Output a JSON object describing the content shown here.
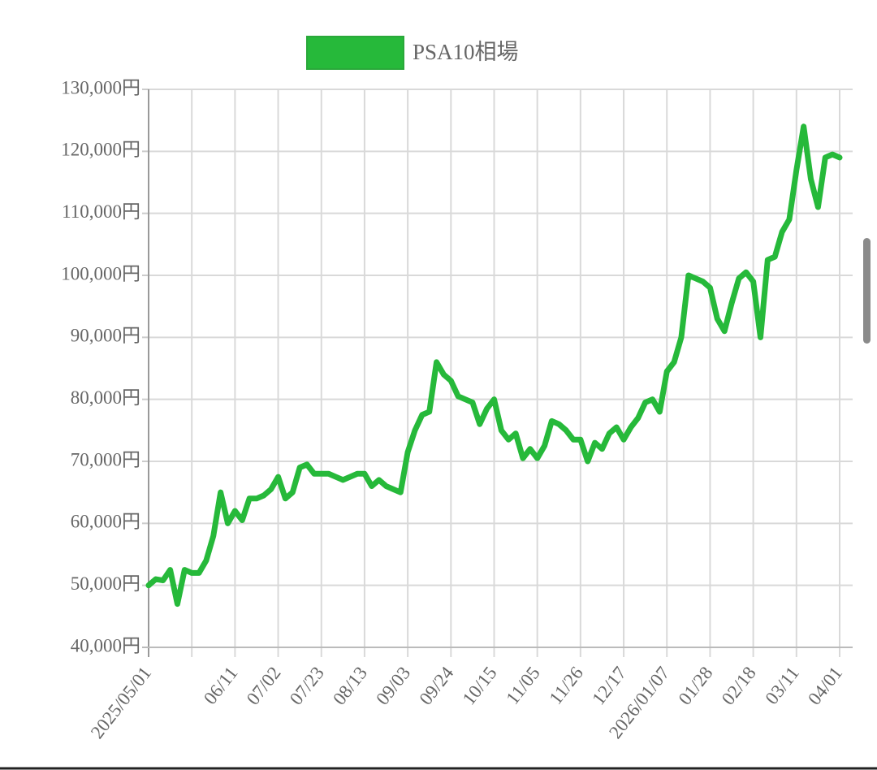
{
  "chart_data": {
    "type": "line",
    "legend": "top",
    "grid": true,
    "categories": [
      "2025/05/01",
      null,
      null,
      null,
      null,
      null,
      null,
      null,
      null,
      null,
      null,
      null,
      "06/11",
      null,
      null,
      null,
      null,
      null,
      "07/02",
      null,
      null,
      null,
      null,
      null,
      "07/23",
      null,
      null,
      null,
      null,
      null,
      "08/13",
      null,
      null,
      null,
      null,
      null,
      "09/03",
      null,
      null,
      null,
      null,
      null,
      "09/24",
      null,
      null,
      null,
      null,
      null,
      "10/15",
      null,
      null,
      null,
      null,
      null,
      "11/05",
      null,
      null,
      null,
      null,
      null,
      "11/26",
      null,
      null,
      null,
      null,
      null,
      "12/17",
      null,
      null,
      null,
      null,
      null,
      "2026/01/07",
      null,
      null,
      null,
      null,
      null,
      "01/28",
      null,
      null,
      null,
      null,
      null,
      "02/18",
      null,
      null,
      null,
      null,
      null,
      "03/11",
      null,
      null,
      null,
      null,
      null,
      "04/01"
    ],
    "series": [
      {
        "name": "PSA10相場",
        "color": "#26b93a",
        "values": [
          50000,
          51000,
          50800,
          52500,
          47000,
          52500,
          52000,
          52000,
          54000,
          58000,
          65000,
          60000,
          62000,
          60500,
          64000,
          64000,
          64500,
          65500,
          67500,
          64000,
          65000,
          69000,
          69500,
          68000,
          68000,
          68000,
          67500,
          67000,
          67500,
          68000,
          68000,
          66000,
          67000,
          66000,
          65500,
          65000,
          71500,
          75000,
          77500,
          78000,
          86000,
          84000,
          83000,
          80500,
          80000,
          79500,
          76000,
          78500,
          80000,
          75000,
          73500,
          74500,
          70500,
          72000,
          70500,
          72500,
          76500,
          76000,
          75000,
          73500,
          73500,
          70000,
          73000,
          72000,
          74500,
          75500,
          73500,
          75500,
          77000,
          79500,
          80000,
          78000,
          84500,
          86000,
          90000,
          100000,
          99500,
          99000,
          98000,
          93000,
          91000,
          95500,
          99500,
          100500,
          99000,
          90000,
          102500,
          103000,
          107000,
          109000,
          117000,
          124000,
          115500,
          111000,
          119000,
          119500,
          119000
        ]
      }
    ],
    "ylim": [
      40000,
      130000
    ],
    "yticks": [
      {
        "value": 40000,
        "label": "40,000円"
      },
      {
        "value": 50000,
        "label": "50,000円"
      },
      {
        "value": 60000,
        "label": "60,000円"
      },
      {
        "value": 70000,
        "label": "70,000円"
      },
      {
        "value": 80000,
        "label": "80,000円"
      },
      {
        "value": 90000,
        "label": "90,000円"
      },
      {
        "value": 100000,
        "label": "100,000円"
      },
      {
        "value": 110000,
        "label": "110,000円"
      },
      {
        "value": 120000,
        "label": "120,000円"
      },
      {
        "value": 130000,
        "label": "130,000円"
      }
    ]
  }
}
